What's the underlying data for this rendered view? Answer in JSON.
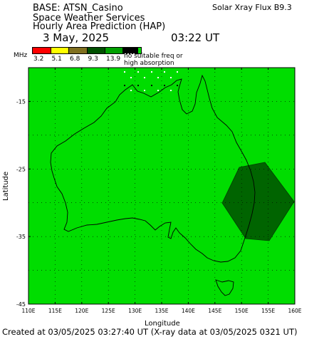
{
  "header": {
    "base_label": "BASE: ATSN_Casino",
    "xray_flux": "Solar Xray Flux B9.3",
    "line2": "Space Weather Services",
    "line3": "Hourly Area Prediction (HAP)",
    "date": "3 May, 2025",
    "time": "03:22 UT"
  },
  "legend": {
    "unit": "MHz",
    "no_freq_line1": "no suitable freq or",
    "no_freq_line2": "high absorption",
    "bins": [
      {
        "label": "3.2",
        "color": "#ff0000"
      },
      {
        "label": "5.1",
        "color": "#ffff00"
      },
      {
        "label": "6.8",
        "color": "#807020"
      },
      {
        "label": "9.3",
        "color": "#005000"
      },
      {
        "label": "13.9",
        "color": "#00a000"
      },
      {
        "label": "",
        "color": "#00e000"
      }
    ]
  },
  "map": {
    "background_color": "#00dd00",
    "zone_color": "#006400",
    "xlabel": "Longitude",
    "ylabel": "Latitude",
    "lon_ticks": [
      "110E",
      "115E",
      "120E",
      "125E",
      "130E",
      "135E",
      "140E",
      "145E",
      "150E",
      "155E",
      "160E"
    ],
    "lat_ticks": [
      "-15",
      "-25",
      "-35",
      "-45"
    ]
  },
  "footer": "Created at 03/05/2025 03:27:40 UT (X-ray data at 03/05/2025 0321 UT)"
}
